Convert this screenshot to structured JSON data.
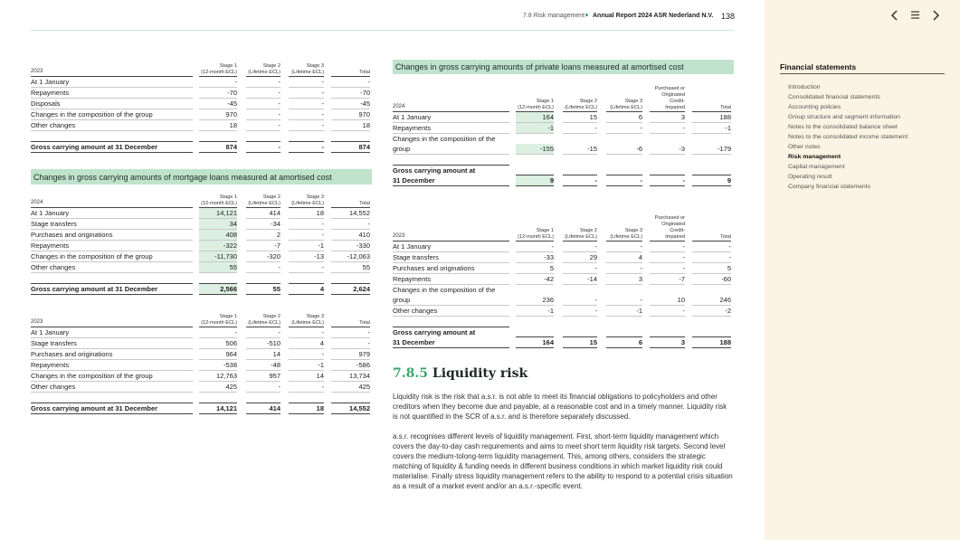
{
  "header": {
    "section": "7.8 Risk management",
    "report": "Annual Report 2024 ASR Nederland N.V.",
    "page": "138"
  },
  "sidebar": {
    "title": "Financial statements",
    "items": [
      "Introduction",
      "Consolidated financial statements",
      "Accounting policies",
      "Group structure and segment information",
      "Notes to the consolidated balance sheet",
      "Notes to the consolidated income statement",
      "Other notes",
      "Risk management",
      "Capital management",
      "Operating result",
      "Company financial statements"
    ]
  },
  "tables": [
    {
      "year": "2023",
      "columns": [
        [
          "Stage 1",
          "(12-month ECL)"
        ],
        [
          "Stage 2",
          "(Lifetime ECL)"
        ],
        [
          "Stage 3",
          "(Lifetime ECL)"
        ],
        [
          "Total"
        ]
      ],
      "rows": [
        {
          "label": "At 1 January",
          "values": [
            "-",
            "-",
            "-",
            "-"
          ]
        },
        {
          "label": "Repayments",
          "values": [
            "-70",
            "-",
            "-",
            "-70"
          ]
        },
        {
          "label": "Disposals",
          "values": [
            "-45",
            "-",
            "-",
            "-45"
          ]
        },
        {
          "label": "Changes in the composition of the group",
          "values": [
            "970",
            "-",
            "-",
            "970"
          ]
        },
        {
          "label": "Other changes",
          "values": [
            "18",
            "-",
            "-",
            "18"
          ]
        }
      ],
      "total": {
        "label": "Gross carrying amount at 31 December",
        "values": [
          "874",
          "-",
          "-",
          "874"
        ]
      }
    },
    {
      "title": "Changes in gross carrying amounts of mortgage loans measured at amortised cost",
      "year": "2024",
      "columns": [
        [
          "Stage 1",
          "(12-month ECL)"
        ],
        [
          "Stage 2",
          "(Lifetime ECL)"
        ],
        [
          "Stage 3",
          "(Lifetime ECL)"
        ],
        [
          "Total"
        ]
      ],
      "rows": [
        {
          "label": "At 1 January",
          "values": [
            "14,121",
            "414",
            "18",
            "14,552"
          ]
        },
        {
          "label": "Stage transfers",
          "values": [
            "34",
            "-34",
            "-",
            "-"
          ]
        },
        {
          "label": "Purchases and originations",
          "values": [
            "408",
            "2",
            "-",
            "410"
          ]
        },
        {
          "label": "Repayments",
          "values": [
            "-322",
            "-7",
            "-1",
            "-330"
          ]
        },
        {
          "label": "Changes in the composition of the group",
          "values": [
            "-11,730",
            "-320",
            "-13",
            "-12,063"
          ]
        },
        {
          "label": "Other changes",
          "values": [
            "55",
            "-",
            "-",
            "55"
          ]
        }
      ],
      "total": {
        "label": "Gross carrying amount at 31 December",
        "values": [
          "2,566",
          "55",
          "4",
          "2,624"
        ]
      }
    },
    {
      "year": "2023",
      "columns": [
        [
          "Stage 1",
          "(12-month ECL)"
        ],
        [
          "Stage 2",
          "(Lifetime ECL)"
        ],
        [
          "Stage 3",
          "(Lifetime ECL)"
        ],
        [
          "Total"
        ]
      ],
      "rows": [
        {
          "label": "At 1 January",
          "values": [
            "-",
            "-",
            "-",
            "-"
          ]
        },
        {
          "label": "Stage transfers",
          "values": [
            "506",
            "-510",
            "4",
            "-"
          ]
        },
        {
          "label": "Purchases and originations",
          "values": [
            "964",
            "14",
            "-",
            "979"
          ]
        },
        {
          "label": "Repayments",
          "values": [
            "-538",
            "-48",
            "-1",
            "-586"
          ]
        },
        {
          "label": "Changes in the composition of the group",
          "values": [
            "12,763",
            "957",
            "14",
            "13,734"
          ]
        },
        {
          "label": "Other changes",
          "values": [
            "425",
            "-",
            "-",
            "425"
          ]
        }
      ],
      "total": {
        "label": "Gross carrying amount at 31 December",
        "values": [
          "14,121",
          "414",
          "18",
          "14,552"
        ]
      }
    },
    {
      "title": "Changes in gross carrying amounts of private loans measured at amortised cost",
      "year": "2024",
      "columns": [
        [
          "Stage 1",
          "(12-month ECL)"
        ],
        [
          "Stage 2",
          "(Lifetime ECL)"
        ],
        [
          "Stage 3",
          "(Lifetime ECL)"
        ],
        [
          "Purchased or",
          "Originated",
          "Credit-",
          "Impaired"
        ],
        [
          "Total"
        ]
      ],
      "rows": [
        {
          "label": "At 1 January",
          "values": [
            "164",
            "15",
            "6",
            "3",
            "188"
          ]
        },
        {
          "label": "Repayments",
          "values": [
            "-1",
            "-",
            "-",
            "-",
            "-1"
          ]
        },
        {
          "label": "Changes in the composition of the group",
          "values": [
            "-155",
            "-15",
            "-6",
            "-3",
            "-179"
          ]
        }
      ],
      "total": {
        "label": "Gross carrying amount at 31 December",
        "values": [
          "9",
          "-",
          "-",
          "-",
          "9"
        ]
      }
    },
    {
      "year": "2023",
      "columns": [
        [
          "Stage 1",
          "(12-month ECL)"
        ],
        [
          "Stage 2",
          "(Lifetime ECL)"
        ],
        [
          "Stage 3",
          "(Lifetime ECL)"
        ],
        [
          "Purchased or",
          "Originated",
          "Credit-",
          "Impaired"
        ],
        [
          "Total"
        ]
      ],
      "rows": [
        {
          "label": "At 1 January",
          "values": [
            "-",
            "-",
            "-",
            "-",
            "-"
          ]
        },
        {
          "label": "Stage transfers",
          "values": [
            "-33",
            "29",
            "4",
            "-",
            "-"
          ]
        },
        {
          "label": "Purchases and originations",
          "values": [
            "5",
            "-",
            "-",
            "-",
            "5"
          ]
        },
        {
          "label": "Repayments",
          "values": [
            "-42",
            "-14",
            "3",
            "-7",
            "-60"
          ]
        },
        {
          "label": "Changes in the composition of the group",
          "values": [
            "236",
            "-",
            "-",
            "10",
            "246"
          ]
        },
        {
          "label": "Other changes",
          "values": [
            "-1",
            "-",
            "-1",
            "-",
            "-2"
          ]
        }
      ],
      "total": {
        "label": "Gross carrying amount at 31 December",
        "values": [
          "164",
          "15",
          "6",
          "3",
          "188"
        ]
      }
    }
  ],
  "liquidity": {
    "number": "7.8.5",
    "title": "Liquidity risk",
    "paragraphs": [
      "Liquidity risk is the risk that a.s.r. is not able to meet its financial obligations to policyholders and other creditors when they become due and payable, at a reasonable cost and in a timely manner. Liquidity risk is not quantified in the SCR of a.s.r. and is therefore separately discussed.",
      "a.s.r. recognises different levels of liquidity management. First, short-term liquidity management which covers the day-to-day cash requirements and aims to meet short term liquidity risk targets. Second level covers the medium-tolong-term liquidity management. This, among others, considers the strategic matching of liquidity & funding needs in different business conditions in which market liquidity risk could materialise. Finally stress liquidity management refers to the ability to respond to a potential crisis situation as a result of a market event and/or an a.s.r.-specific event."
    ]
  }
}
